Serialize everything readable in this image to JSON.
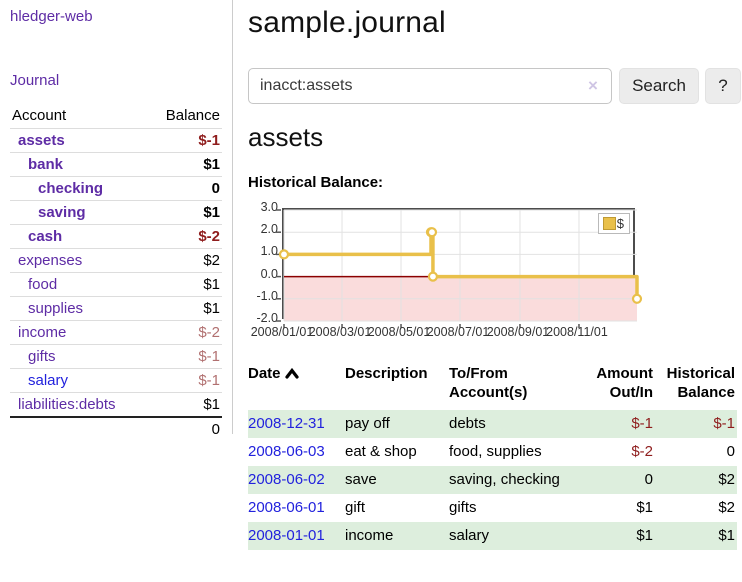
{
  "colors": {
    "purple": "#5e2ca5",
    "blue": "#2222dd",
    "neg_strong": "#8f1d1d",
    "neg_muted": "#b17070",
    "row_green": "#ddeedd",
    "chart_gold": "#e9c04a",
    "chart_pink": "#fadcdc",
    "zero_red": "#8b0000"
  },
  "sidebar": {
    "app_title": "hledger-web",
    "nav_journal": "Journal",
    "table": {
      "account_header": "Account",
      "balance_header": "Balance",
      "rows": [
        {
          "label": "assets",
          "indent": 0,
          "bold": true,
          "balance": "$-1",
          "tone": "neg-strong"
        },
        {
          "label": "bank",
          "indent": 1,
          "bold": true,
          "balance": "$1",
          "tone": "pos"
        },
        {
          "label": "checking",
          "indent": 2,
          "bold": true,
          "balance": "0",
          "tone": "pos"
        },
        {
          "label": "saving",
          "indent": 2,
          "bold": true,
          "balance": "$1",
          "tone": "pos"
        },
        {
          "label": "cash",
          "indent": 1,
          "bold": true,
          "balance": "$-2",
          "tone": "neg-strong"
        },
        {
          "label": "expenses",
          "indent": 0,
          "bold": false,
          "balance": "$2",
          "tone": "pos"
        },
        {
          "label": "food",
          "indent": 1,
          "bold": false,
          "balance": "$1",
          "tone": "pos"
        },
        {
          "label": "supplies",
          "indent": 1,
          "bold": false,
          "balance": "$1",
          "tone": "pos"
        },
        {
          "label": "income",
          "indent": 0,
          "bold": false,
          "balance": "$-2",
          "tone": "neg-muted"
        },
        {
          "label": "gifts",
          "indent": 1,
          "bold": false,
          "balance": "$-1",
          "tone": "neg-muted"
        },
        {
          "label": "salary",
          "indent": 1,
          "bold": false,
          "balance": "$-1",
          "tone": "neg-muted",
          "link_color": "blue"
        },
        {
          "label": "liabilities:debts",
          "indent": 0,
          "bold": false,
          "balance": "$1",
          "tone": "pos",
          "last": true
        }
      ],
      "total": "0"
    }
  },
  "header": {
    "title": "sample.journal"
  },
  "search": {
    "value": "inacct:assets",
    "clear_icon": "×",
    "button_label": "Search",
    "help_label": "?"
  },
  "section": {
    "heading": "assets",
    "chart_label": "Historical Balance:"
  },
  "chart_data": {
    "type": "line",
    "step": true,
    "title": "Historical Balance:",
    "xlim": [
      "2008-01-01",
      "2008-12-31"
    ],
    "ylim": [
      -2,
      3
    ],
    "x_ticks": [
      {
        "label": "2008/01/01",
        "date": "2008-01-01"
      },
      {
        "label": "2008/03/01",
        "date": "2008-03-01"
      },
      {
        "label": "2008/05/01",
        "date": "2008-05-01"
      },
      {
        "label": "2008/07/01",
        "date": "2008-07-01"
      },
      {
        "label": "2008/09/01",
        "date": "2008-09-01"
      },
      {
        "label": "2008/11/01",
        "date": "2008-11-01"
      }
    ],
    "y_ticks": [
      3.0,
      2.0,
      1.0,
      0.0,
      -1.0,
      -2.0
    ],
    "series": [
      {
        "name": "$",
        "color": "#e9c04a",
        "points": [
          {
            "date": "2008-01-01",
            "value": 1
          },
          {
            "date": "2008-06-01",
            "value": 2
          },
          {
            "date": "2008-06-02",
            "value": 2
          },
          {
            "date": "2008-06-03",
            "value": 0
          },
          {
            "date": "2008-12-31",
            "value": -1
          }
        ]
      }
    ],
    "grid": true,
    "negative_region_fill": "#fadcdc",
    "zero_line_color": "#8b0000",
    "legend": {
      "position": "top-right",
      "label": "$"
    }
  },
  "register_table": {
    "headers": {
      "date": "Date",
      "description": "Description",
      "accounts": "To/From Account(s)",
      "amount": "Amount Out/In",
      "balance": "Historical Balance"
    },
    "rows": [
      {
        "date": "2008-12-31",
        "description": "pay off",
        "accounts": "debts",
        "amount": "$-1",
        "amount_neg": true,
        "balance": "$-1",
        "balance_neg": true,
        "highlight": true
      },
      {
        "date": "2008-06-03",
        "description": "eat & shop",
        "accounts": "food, supplies",
        "amount": "$-2",
        "amount_neg": true,
        "balance": "0",
        "balance_neg": false,
        "highlight": false
      },
      {
        "date": "2008-06-02",
        "description": "save",
        "accounts": "saving, checking",
        "amount": "0",
        "amount_neg": false,
        "balance": "$2",
        "balance_neg": false,
        "highlight": true
      },
      {
        "date": "2008-06-01",
        "description": "gift",
        "accounts": "gifts",
        "amount": "$1",
        "amount_neg": false,
        "balance": "$2",
        "balance_neg": false,
        "highlight": false
      },
      {
        "date": "2008-01-01",
        "description": "income",
        "accounts": "salary",
        "amount": "$1",
        "amount_neg": false,
        "balance": "$1",
        "balance_neg": false,
        "highlight": true
      }
    ]
  }
}
